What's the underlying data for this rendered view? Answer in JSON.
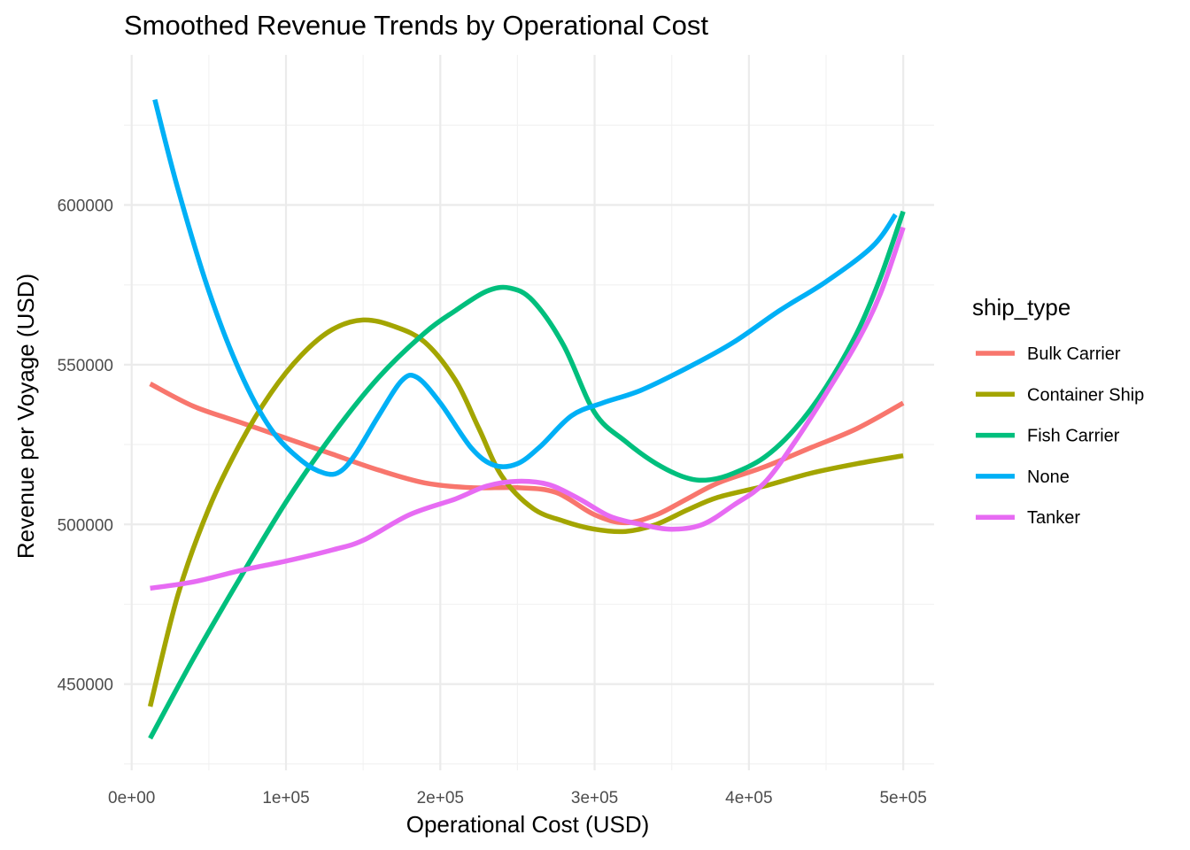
{
  "chart_data": {
    "type": "line",
    "title": "Smoothed Revenue Trends by Operational Cost",
    "xlabel": "Operational Cost (USD)",
    "ylabel": "Revenue per Voyage (USD)",
    "xlim": [
      -5000,
      520000
    ],
    "ylim": [
      423000,
      647000
    ],
    "x_ticks": [
      {
        "value": 0,
        "label": "0e+00"
      },
      {
        "value": 100000,
        "label": "1e+05"
      },
      {
        "value": 200000,
        "label": "2e+05"
      },
      {
        "value": 300000,
        "label": "3e+05"
      },
      {
        "value": 400000,
        "label": "4e+05"
      },
      {
        "value": 500000,
        "label": "5e+05"
      }
    ],
    "y_ticks": [
      {
        "value": 450000,
        "label": "450000"
      },
      {
        "value": 500000,
        "label": "500000"
      },
      {
        "value": 550000,
        "label": "550000"
      },
      {
        "value": 600000,
        "label": "600000"
      }
    ],
    "grid": true,
    "legend": {
      "title": "ship_type",
      "position": "right"
    },
    "series": [
      {
        "name": "Bulk Carrier",
        "color": "#F8766D",
        "points": [
          [
            12000,
            544000
          ],
          [
            40000,
            537000
          ],
          [
            70000,
            532000
          ],
          [
            100000,
            527000
          ],
          [
            130000,
            522000
          ],
          [
            160000,
            517000
          ],
          [
            190000,
            513000
          ],
          [
            220000,
            511500
          ],
          [
            250000,
            511500
          ],
          [
            275000,
            510000
          ],
          [
            300000,
            503000
          ],
          [
            320000,
            500500
          ],
          [
            340000,
            503000
          ],
          [
            360000,
            508000
          ],
          [
            380000,
            513000
          ],
          [
            410000,
            518000
          ],
          [
            440000,
            524000
          ],
          [
            470000,
            530000
          ],
          [
            500000,
            538000
          ]
        ]
      },
      {
        "name": "Container Ship",
        "color": "#A3A500",
        "points": [
          [
            12000,
            443000
          ],
          [
            30000,
            478000
          ],
          [
            50000,
            505000
          ],
          [
            70000,
            525000
          ],
          [
            90000,
            541000
          ],
          [
            110000,
            553000
          ],
          [
            130000,
            561000
          ],
          [
            150000,
            564000
          ],
          [
            170000,
            562000
          ],
          [
            190000,
            557000
          ],
          [
            210000,
            545000
          ],
          [
            225000,
            530000
          ],
          [
            240000,
            515000
          ],
          [
            260000,
            505000
          ],
          [
            280000,
            501000
          ],
          [
            300000,
            498500
          ],
          [
            320000,
            497800
          ],
          [
            340000,
            500000
          ],
          [
            360000,
            504500
          ],
          [
            380000,
            508500
          ],
          [
            410000,
            512000
          ],
          [
            440000,
            516000
          ],
          [
            470000,
            519000
          ],
          [
            500000,
            521500
          ]
        ]
      },
      {
        "name": "Fish Carrier",
        "color": "#00BF7D",
        "points": [
          [
            12000,
            433000
          ],
          [
            40000,
            458000
          ],
          [
            70000,
            483000
          ],
          [
            100000,
            507000
          ],
          [
            130000,
            528000
          ],
          [
            160000,
            546000
          ],
          [
            190000,
            560000
          ],
          [
            210000,
            567000
          ],
          [
            230000,
            573000
          ],
          [
            245000,
            574000
          ],
          [
            260000,
            570000
          ],
          [
            280000,
            556000
          ],
          [
            300000,
            535000
          ],
          [
            320000,
            526000
          ],
          [
            340000,
            519000
          ],
          [
            360000,
            514500
          ],
          [
            375000,
            514000
          ],
          [
            390000,
            516000
          ],
          [
            410000,
            521000
          ],
          [
            430000,
            530000
          ],
          [
            450000,
            543000
          ],
          [
            470000,
            560000
          ],
          [
            485000,
            577000
          ],
          [
            500000,
            598000
          ]
        ]
      },
      {
        "name": "None",
        "color": "#00B0F6",
        "points": [
          [
            15000,
            633000
          ],
          [
            30000,
            605000
          ],
          [
            50000,
            573000
          ],
          [
            70000,
            548000
          ],
          [
            90000,
            530000
          ],
          [
            110000,
            520000
          ],
          [
            125000,
            516000
          ],
          [
            135000,
            516500
          ],
          [
            145000,
            522000
          ],
          [
            160000,
            534000
          ],
          [
            175000,
            545000
          ],
          [
            185000,
            546000
          ],
          [
            200000,
            538000
          ],
          [
            220000,
            524000
          ],
          [
            235000,
            518500
          ],
          [
            250000,
            519000
          ],
          [
            265000,
            524500
          ],
          [
            285000,
            534000
          ],
          [
            305000,
            538000
          ],
          [
            330000,
            542000
          ],
          [
            360000,
            549000
          ],
          [
            390000,
            557000
          ],
          [
            420000,
            567000
          ],
          [
            450000,
            576000
          ],
          [
            480000,
            587000
          ],
          [
            495000,
            597000
          ]
        ]
      },
      {
        "name": "Tanker",
        "color": "#E76BF3",
        "points": [
          [
            12000,
            480000
          ],
          [
            40000,
            482000
          ],
          [
            70000,
            485500
          ],
          [
            100000,
            488500
          ],
          [
            130000,
            492000
          ],
          [
            150000,
            495000
          ],
          [
            180000,
            503000
          ],
          [
            210000,
            508000
          ],
          [
            230000,
            512000
          ],
          [
            250000,
            513500
          ],
          [
            270000,
            512500
          ],
          [
            290000,
            508000
          ],
          [
            310000,
            502500
          ],
          [
            330000,
            500000
          ],
          [
            350000,
            498500
          ],
          [
            370000,
            500000
          ],
          [
            390000,
            506000
          ],
          [
            410000,
            513000
          ],
          [
            430000,
            526000
          ],
          [
            450000,
            541000
          ],
          [
            470000,
            557000
          ],
          [
            485000,
            572000
          ],
          [
            500000,
            593000
          ]
        ]
      }
    ]
  }
}
